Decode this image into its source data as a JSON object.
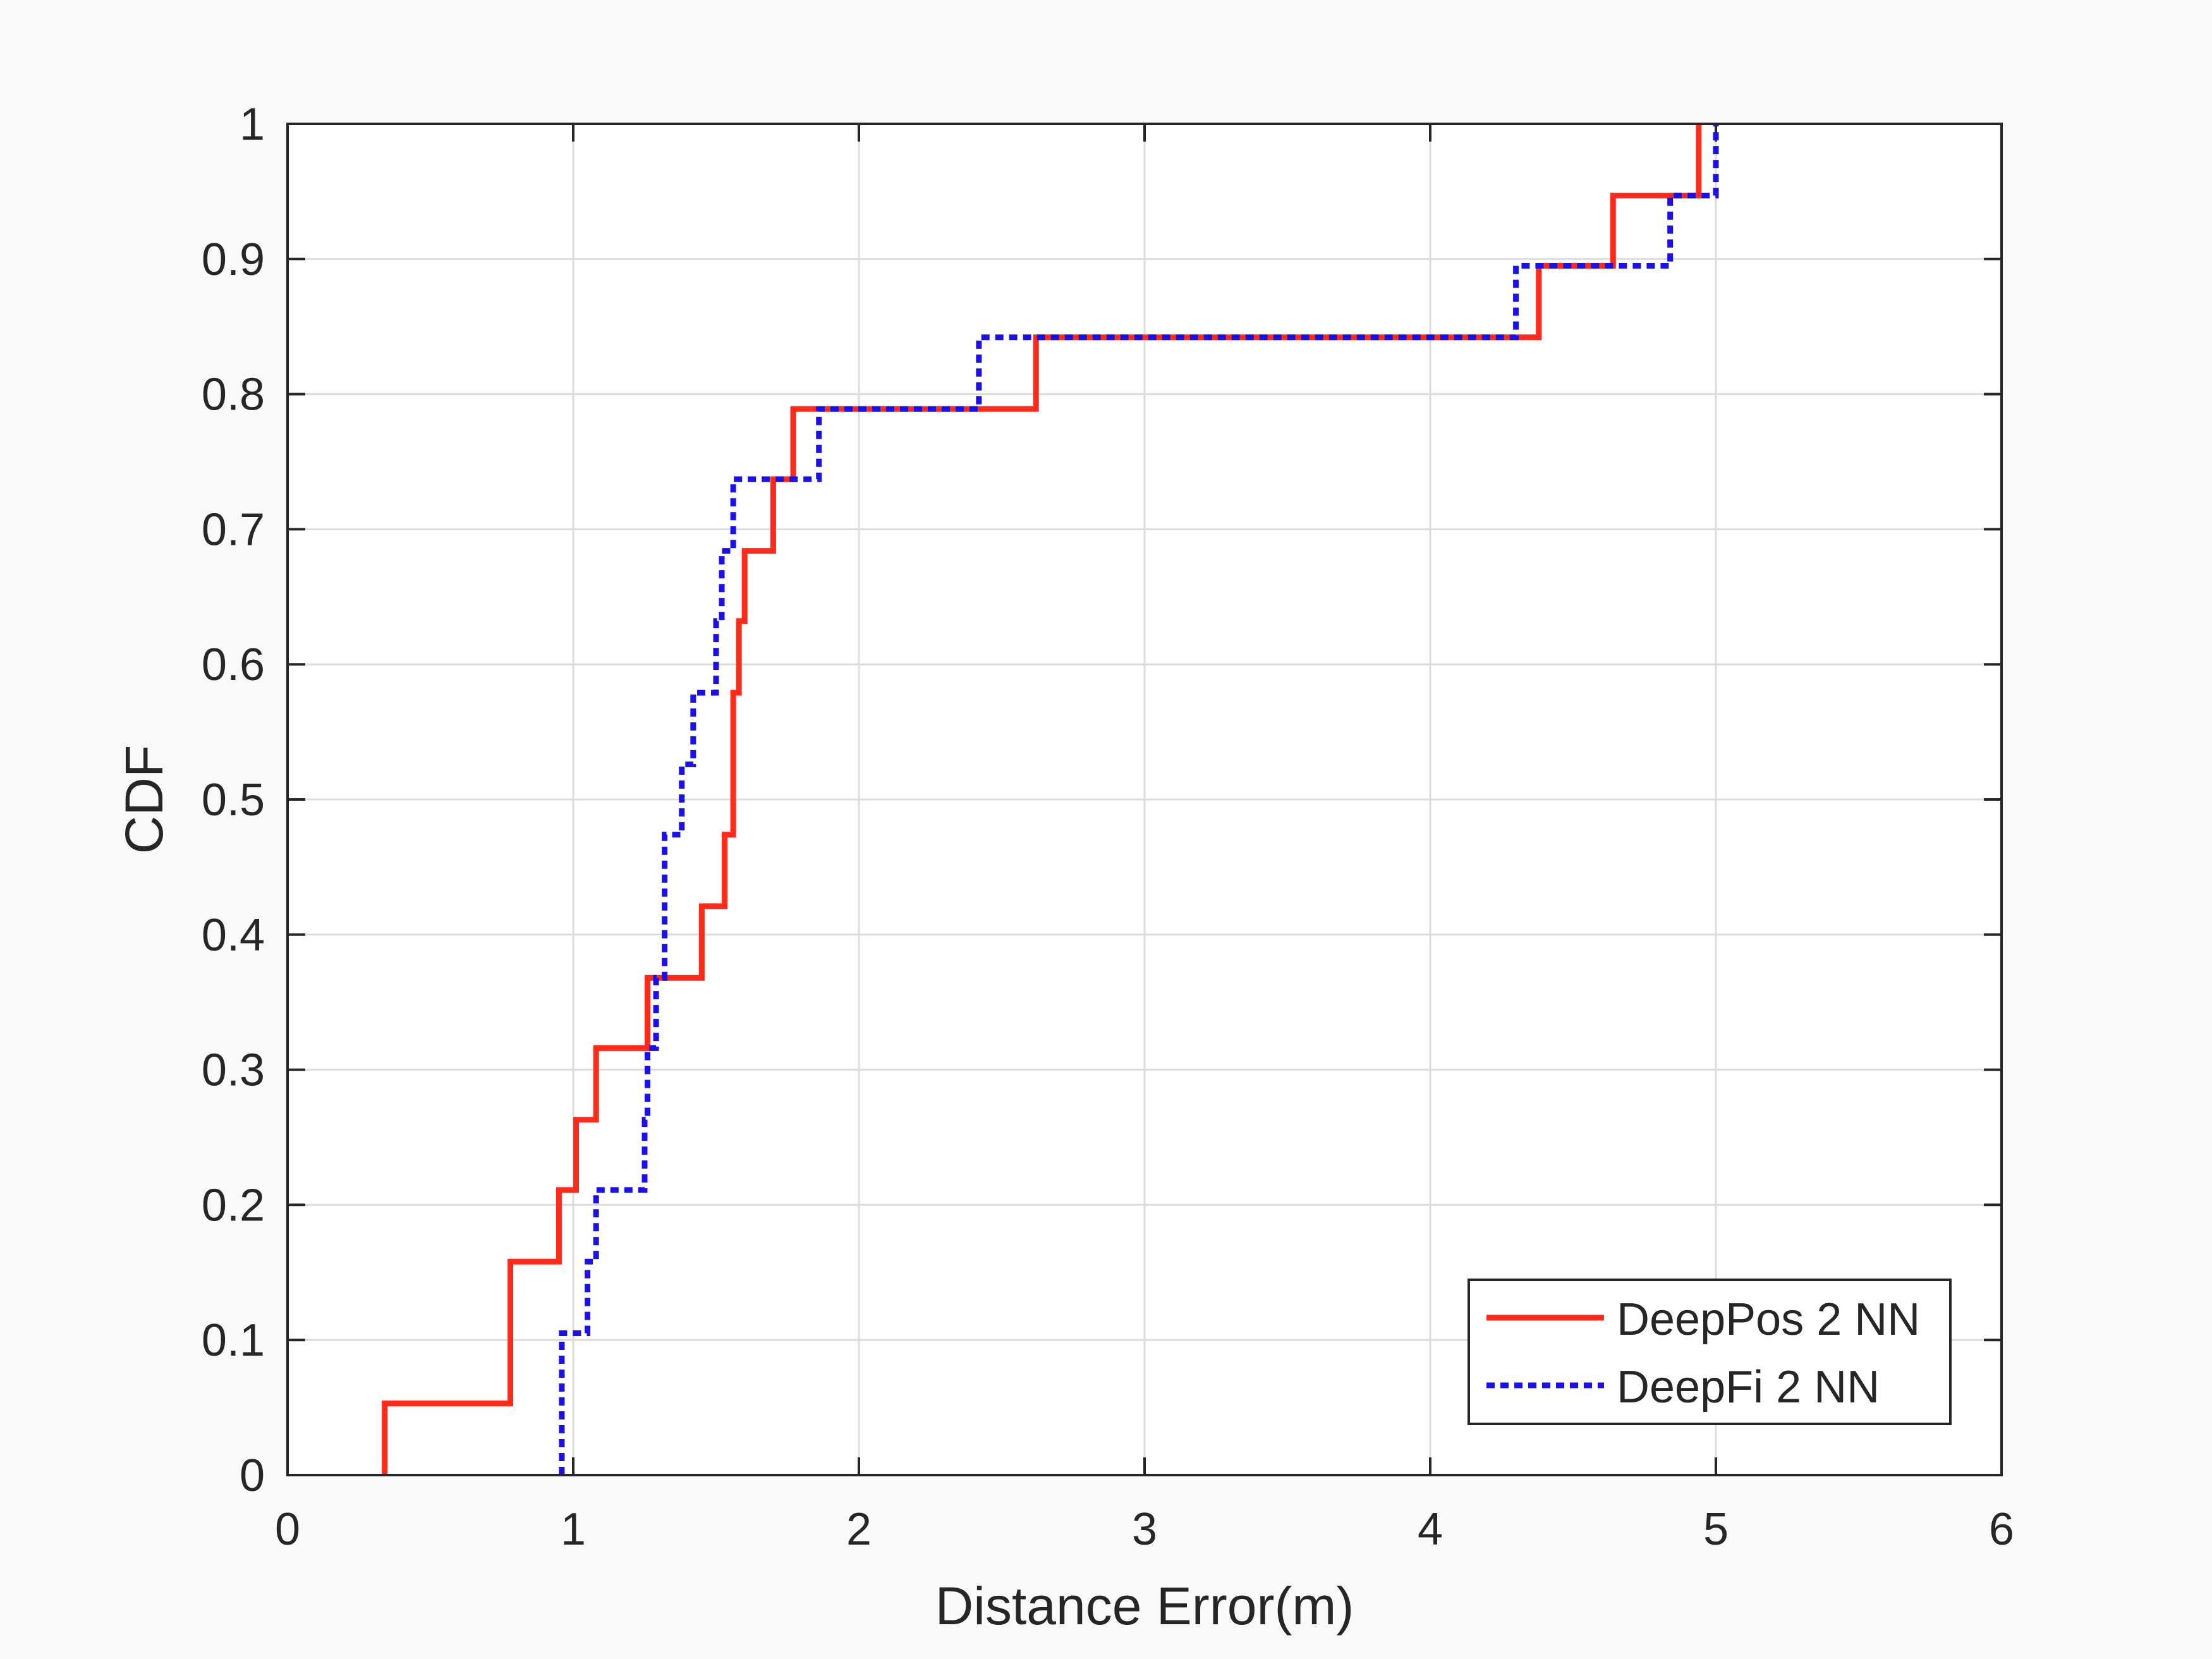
{
  "chart_data": {
    "type": "line",
    "step": true,
    "title": "",
    "xlabel": "Distance Error(m)",
    "ylabel": "CDF",
    "xlim": [
      0,
      6
    ],
    "ylim": [
      0,
      1
    ],
    "xticks": [
      0,
      1,
      2,
      3,
      4,
      5,
      6
    ],
    "xtick_labels": [
      "0",
      "1",
      "2",
      "3",
      "4",
      "5",
      "6"
    ],
    "yticks": [
      0,
      0.1,
      0.2,
      0.3,
      0.4,
      0.5,
      0.6,
      0.7,
      0.8,
      0.9,
      1
    ],
    "ytick_labels": [
      "0",
      "0.1",
      "0.2",
      "0.3",
      "0.4",
      "0.5",
      "0.6",
      "0.7",
      "0.8",
      "0.9",
      "1"
    ],
    "grid": true,
    "legend_position": "bottom-right",
    "series": [
      {
        "name": "DeepPos 2 NN",
        "color": "#ff2a1a",
        "style": "solid",
        "x": [
          0.34,
          0.78,
          0.95,
          1.01,
          1.08,
          1.26,
          1.45,
          1.53,
          1.56,
          1.58,
          1.6,
          1.7,
          1.77,
          2.62,
          4.38,
          4.64,
          4.94
        ],
        "y": [
          0.053,
          0.158,
          0.211,
          0.263,
          0.316,
          0.368,
          0.421,
          0.474,
          0.579,
          0.632,
          0.684,
          0.737,
          0.789,
          0.842,
          0.895,
          0.947,
          1.0
        ]
      },
      {
        "name": "DeepFi 2 NN",
        "color": "#1a10e8",
        "style": "dotted",
        "x": [
          0.96,
          1.05,
          1.08,
          1.25,
          1.26,
          1.29,
          1.32,
          1.38,
          1.42,
          1.5,
          1.52,
          1.56,
          1.86,
          2.42,
          4.3,
          4.84,
          5.0
        ],
        "y": [
          0.105,
          0.158,
          0.211,
          0.263,
          0.316,
          0.368,
          0.474,
          0.526,
          0.579,
          0.632,
          0.684,
          0.737,
          0.789,
          0.842,
          0.895,
          0.947,
          1.0
        ]
      }
    ]
  }
}
